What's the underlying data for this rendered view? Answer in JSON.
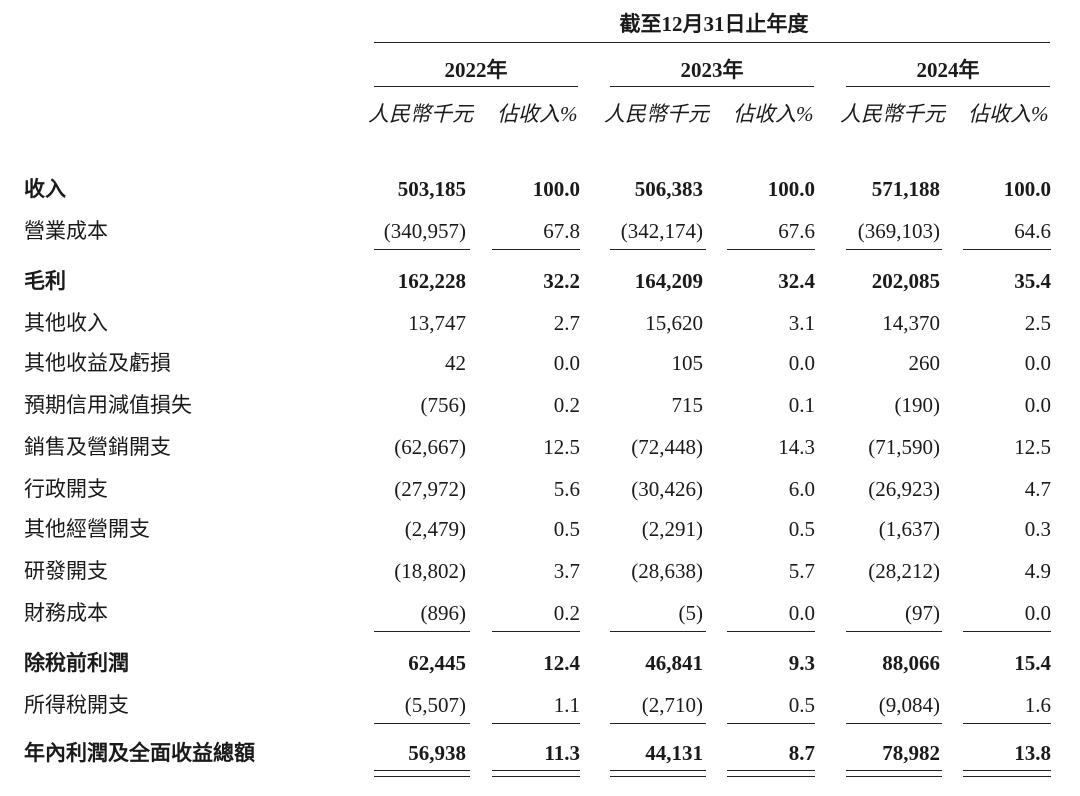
{
  "header": {
    "period": "截至12月31日止年度",
    "years": [
      "2022年",
      "2023年",
      "2024年"
    ],
    "unit_amount": "人民幣千元",
    "unit_pct": "佔收入%"
  },
  "rows": [
    {
      "label": "收入",
      "bold": true,
      "values": [
        "503,185",
        "100.0",
        "506,383",
        "100.0",
        "571,188",
        "100.0"
      ]
    },
    {
      "label": "營業成本",
      "bold": false,
      "values": [
        "(340,957)",
        "67.8",
        "(342,174)",
        "67.6",
        "(369,103)",
        "64.6"
      ]
    },
    {
      "label": "毛利",
      "bold": true,
      "values": [
        "162,228",
        "32.2",
        "164,209",
        "32.4",
        "202,085",
        "35.4"
      ]
    },
    {
      "label": "其他收入",
      "bold": false,
      "values": [
        "13,747",
        "2.7",
        "15,620",
        "3.1",
        "14,370",
        "2.5"
      ]
    },
    {
      "label": "其他收益及虧損",
      "bold": false,
      "values": [
        "42",
        "0.0",
        "105",
        "0.0",
        "260",
        "0.0"
      ]
    },
    {
      "label": "預期信用減值損失",
      "bold": false,
      "values": [
        "(756)",
        "0.2",
        "715",
        "0.1",
        "(190)",
        "0.0"
      ]
    },
    {
      "label": "銷售及營銷開支",
      "bold": false,
      "values": [
        "(62,667)",
        "12.5",
        "(72,448)",
        "14.3",
        "(71,590)",
        "12.5"
      ]
    },
    {
      "label": "行政開支",
      "bold": false,
      "values": [
        "(27,972)",
        "5.6",
        "(30,426)",
        "6.0",
        "(26,923)",
        "4.7"
      ]
    },
    {
      "label": "其他經營開支",
      "bold": false,
      "values": [
        "(2,479)",
        "0.5",
        "(2,291)",
        "0.5",
        "(1,637)",
        "0.3"
      ]
    },
    {
      "label": "研發開支",
      "bold": false,
      "values": [
        "(18,802)",
        "3.7",
        "(28,638)",
        "5.7",
        "(28,212)",
        "4.9"
      ]
    },
    {
      "label": "財務成本",
      "bold": false,
      "values": [
        "(896)",
        "0.2",
        "(5)",
        "0.0",
        "(97)",
        "0.0"
      ]
    },
    {
      "label": "除稅前利潤",
      "bold": true,
      "values": [
        "62,445",
        "12.4",
        "46,841",
        "9.3",
        "88,066",
        "15.4"
      ]
    },
    {
      "label": "所得稅開支",
      "bold": false,
      "values": [
        "(5,507)",
        "1.1",
        "(2,710)",
        "0.5",
        "(9,084)",
        "1.6"
      ]
    },
    {
      "label": "年內利潤及全面收益總額",
      "bold": true,
      "values": [
        "56,938",
        "11.3",
        "44,131",
        "8.7",
        "78,982",
        "13.8"
      ]
    }
  ]
}
